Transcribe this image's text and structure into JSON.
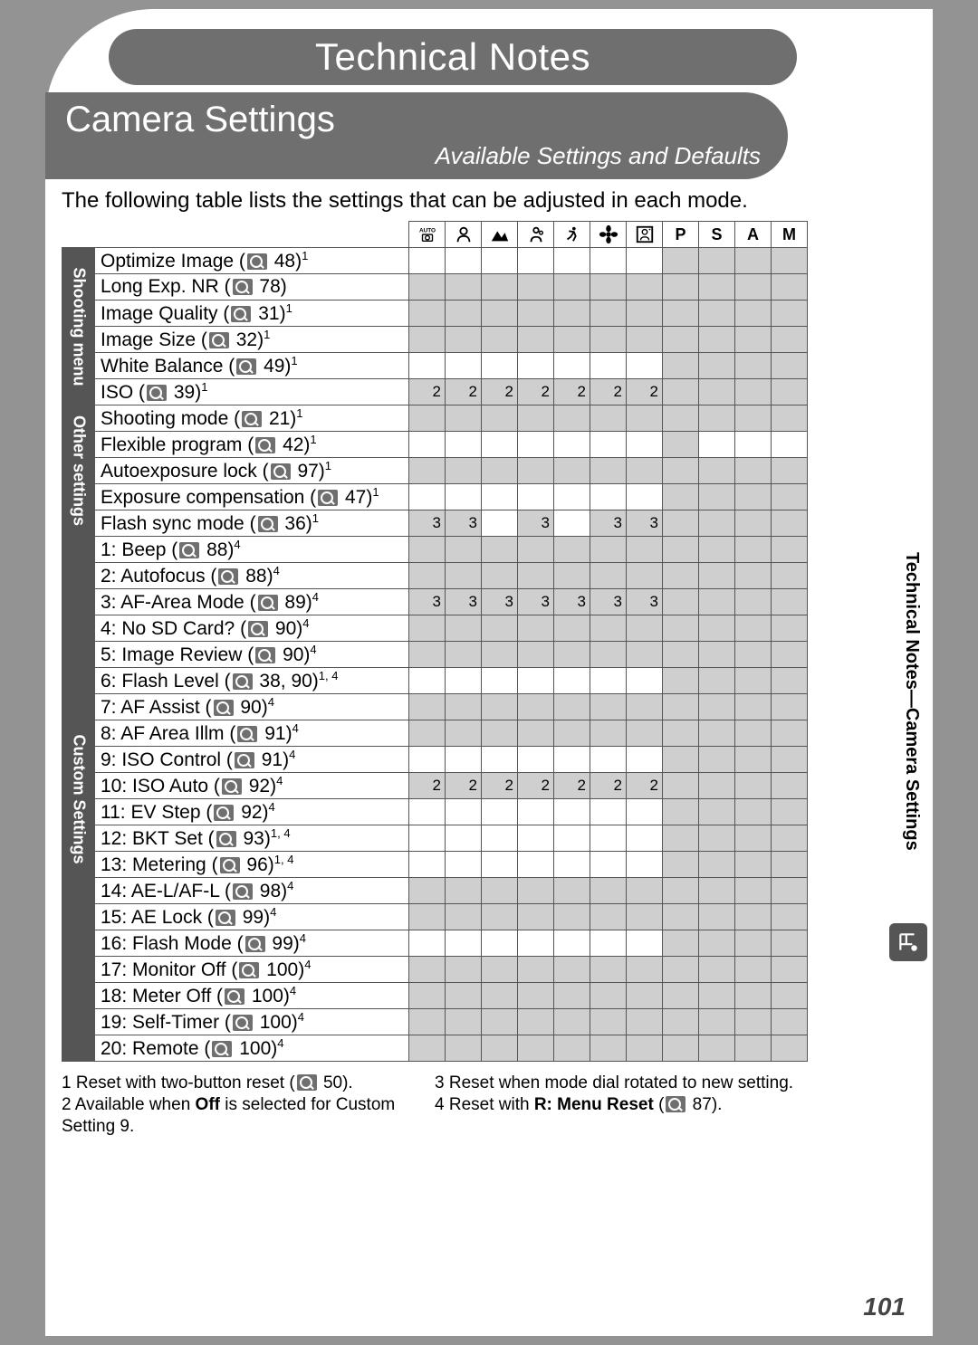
{
  "page": {
    "title": "Technical Notes",
    "section": "Camera Settings",
    "subtitle": "Available Settings and Defaults",
    "intro": "The following table lists the settings that can be adjusted in each mode.",
    "page_number": "101",
    "side_label": "Technical Notes—Camera Settings"
  },
  "colors": {
    "page_bg": "#ffffff",
    "outer_bg": "#939393",
    "pill_bg": "#6f6f6f",
    "cell_shade": "#cfcfcf",
    "side_bg": "#555555"
  },
  "mode_headers": [
    {
      "type": "icon",
      "name": "auto-icon"
    },
    {
      "type": "icon",
      "name": "portrait-icon"
    },
    {
      "type": "icon",
      "name": "landscape-icon"
    },
    {
      "type": "icon",
      "name": "child-icon"
    },
    {
      "type": "icon",
      "name": "sports-icon"
    },
    {
      "type": "icon",
      "name": "closeup-icon"
    },
    {
      "type": "icon",
      "name": "night-portrait-icon"
    },
    {
      "type": "text",
      "label": "P"
    },
    {
      "type": "text",
      "label": "S"
    },
    {
      "type": "text",
      "label": "A"
    },
    {
      "type": "text",
      "label": "M"
    }
  ],
  "sections": [
    {
      "name": "Shooting menu",
      "rows": [
        {
          "label": "Optimize Image",
          "page": "48",
          "sup": "1",
          "cells": [
            "",
            "",
            "",
            "",
            "",
            "",
            "",
            "g",
            "g",
            "g",
            "g"
          ]
        },
        {
          "label": "Long Exp. NR",
          "page": "78",
          "sup": "",
          "cells": [
            "g",
            "g",
            "g",
            "g",
            "g",
            "g",
            "g",
            "g",
            "g",
            "g",
            "g"
          ]
        },
        {
          "label": "Image Quality",
          "page": "31",
          "sup": "1",
          "cells": [
            "g",
            "g",
            "g",
            "g",
            "g",
            "g",
            "g",
            "g",
            "g",
            "g",
            "g"
          ]
        },
        {
          "label": "Image Size",
          "page": "32",
          "sup": "1",
          "cells": [
            "g",
            "g",
            "g",
            "g",
            "g",
            "g",
            "g",
            "g",
            "g",
            "g",
            "g"
          ]
        },
        {
          "label": "White Balance",
          "page": "49",
          "sup": "1",
          "cells": [
            "",
            "",
            "",
            "",
            "",
            "",
            "",
            "g",
            "g",
            "g",
            "g"
          ]
        },
        {
          "label": "ISO",
          "page": "39",
          "sup": "1",
          "cells": [
            "2",
            "2",
            "2",
            "2",
            "2",
            "2",
            "2",
            "g",
            "g",
            "g",
            "g"
          ]
        }
      ]
    },
    {
      "name": "Other settings",
      "rows": [
        {
          "label": "Shooting mode",
          "page": "21",
          "sup": "1",
          "cells": [
            "g",
            "g",
            "g",
            "g",
            "g",
            "g",
            "g",
            "g",
            "g",
            "g",
            "g"
          ]
        },
        {
          "label": "Flexible program",
          "page": "42",
          "sup": "1",
          "cells": [
            "",
            "",
            "",
            "",
            "",
            "",
            "",
            "g",
            "",
            "",
            ""
          ]
        },
        {
          "label": "Autoexposure lock",
          "page": "97",
          "sup": "1",
          "cells": [
            "g",
            "g",
            "g",
            "g",
            "g",
            "g",
            "g",
            "g",
            "g",
            "g",
            "g"
          ]
        },
        {
          "label": "Exposure compensation",
          "page": "47",
          "sup": "1",
          "cells": [
            "",
            "",
            "",
            "",
            "",
            "",
            "",
            "g",
            "g",
            "g",
            "g"
          ]
        },
        {
          "label": "Flash sync mode",
          "page": "36",
          "sup": "1",
          "cells": [
            "3",
            "3",
            "",
            "3",
            "",
            "3",
            "3",
            "g",
            "g",
            "g",
            "g"
          ]
        }
      ]
    },
    {
      "name": "Custom Settings",
      "rows": [
        {
          "label": "1: Beep",
          "page": "88",
          "sup": "4",
          "cells": [
            "g",
            "g",
            "g",
            "g",
            "g",
            "g",
            "g",
            "g",
            "g",
            "g",
            "g"
          ]
        },
        {
          "label": "2: Autofocus",
          "page": "88",
          "sup": "4",
          "cells": [
            "g",
            "g",
            "g",
            "g",
            "g",
            "g",
            "g",
            "g",
            "g",
            "g",
            "g"
          ]
        },
        {
          "label": "3: AF-Area Mode",
          "page": "89",
          "sup": "4",
          "cells": [
            "3",
            "3",
            "3",
            "3",
            "3",
            "3",
            "3",
            "g",
            "g",
            "g",
            "g"
          ]
        },
        {
          "label": "4: No SD Card?",
          "page": "90",
          "sup": "4",
          "cells": [
            "g",
            "g",
            "g",
            "g",
            "g",
            "g",
            "g",
            "g",
            "g",
            "g",
            "g"
          ]
        },
        {
          "label": "5: Image Review",
          "page": "90",
          "sup": "4",
          "cells": [
            "g",
            "g",
            "g",
            "g",
            "g",
            "g",
            "g",
            "g",
            "g",
            "g",
            "g"
          ]
        },
        {
          "label": "6: Flash Level",
          "page": "38, 90",
          "sup": "1, 4",
          "cells": [
            "",
            "",
            "",
            "",
            "",
            "",
            "",
            "g",
            "g",
            "g",
            "g"
          ]
        },
        {
          "label": "7: AF Assist",
          "page": "90",
          "sup": "4",
          "cells": [
            "g",
            "g",
            "g",
            "g",
            "g",
            "g",
            "g",
            "g",
            "g",
            "g",
            "g"
          ]
        },
        {
          "label": "8: AF Area Illm",
          "page": "91",
          "sup": "4",
          "cells": [
            "g",
            "g",
            "g",
            "g",
            "g",
            "g",
            "g",
            "g",
            "g",
            "g",
            "g"
          ]
        },
        {
          "label": "9: ISO Control",
          "page": "91",
          "sup": "4",
          "cells": [
            "",
            "",
            "",
            "",
            "",
            "",
            "",
            "g",
            "g",
            "g",
            "g"
          ]
        },
        {
          "label": "10: ISO Auto",
          "page": "92",
          "sup": "4",
          "cells": [
            "2",
            "2",
            "2",
            "2",
            "2",
            "2",
            "2",
            "g",
            "g",
            "g",
            "g"
          ]
        },
        {
          "label": "11: EV Step",
          "page": "92",
          "sup": "4",
          "cells": [
            "",
            "",
            "",
            "",
            "",
            "",
            "",
            "g",
            "g",
            "g",
            "g"
          ]
        },
        {
          "label": "12: BKT Set",
          "page": "93",
          "sup": "1, 4",
          "cells": [
            "",
            "",
            "",
            "",
            "",
            "",
            "",
            "g",
            "g",
            "g",
            "g"
          ]
        },
        {
          "label": "13: Metering",
          "page": "96",
          "sup": "1, 4",
          "cells": [
            "",
            "",
            "",
            "",
            "",
            "",
            "",
            "g",
            "g",
            "g",
            "g"
          ]
        },
        {
          "label": "14: AE-L/AF-L",
          "page": "98",
          "sup": "4",
          "cells": [
            "g",
            "g",
            "g",
            "g",
            "g",
            "g",
            "g",
            "g",
            "g",
            "g",
            "g"
          ]
        },
        {
          "label": "15: AE Lock",
          "page": "99",
          "sup": "4",
          "cells": [
            "g",
            "g",
            "g",
            "g",
            "g",
            "g",
            "g",
            "g",
            "g",
            "g",
            "g"
          ]
        },
        {
          "label": "16: Flash Mode",
          "page": "99",
          "sup": "4",
          "cells": [
            "",
            "",
            "",
            "",
            "",
            "",
            "",
            "g",
            "g",
            "g",
            "g"
          ]
        },
        {
          "label": "17: Monitor Off",
          "page": "100",
          "sup": "4",
          "cells": [
            "g",
            "g",
            "g",
            "g",
            "g",
            "g",
            "g",
            "g",
            "g",
            "g",
            "g"
          ]
        },
        {
          "label": "18: Meter Off",
          "page": "100",
          "sup": "4",
          "cells": [
            "g",
            "g",
            "g",
            "g",
            "g",
            "g",
            "g",
            "g",
            "g",
            "g",
            "g"
          ]
        },
        {
          "label": "19: Self-Timer",
          "page": "100",
          "sup": "4",
          "cells": [
            "g",
            "g",
            "g",
            "g",
            "g",
            "g",
            "g",
            "g",
            "g",
            "g",
            "g"
          ]
        },
        {
          "label": "20: Remote",
          "page": "100",
          "sup": "4",
          "cells": [
            "g",
            "g",
            "g",
            "g",
            "g",
            "g",
            "g",
            "g",
            "g",
            "g",
            "g"
          ]
        }
      ]
    }
  ],
  "footnotes": {
    "n1_a": "1 Reset with two-button reset (",
    "n1_b": " 50).",
    "n2_a": "2 Available when ",
    "n2_b": "Off",
    "n2_c": " is selected for Custom Setting 9.",
    "n3": "3 Reset when mode dial rotated to new setting.",
    "n4_a": "4 Reset with ",
    "n4_b": "R: Menu Reset",
    "n4_c": " (",
    "n4_d": " 87)."
  }
}
